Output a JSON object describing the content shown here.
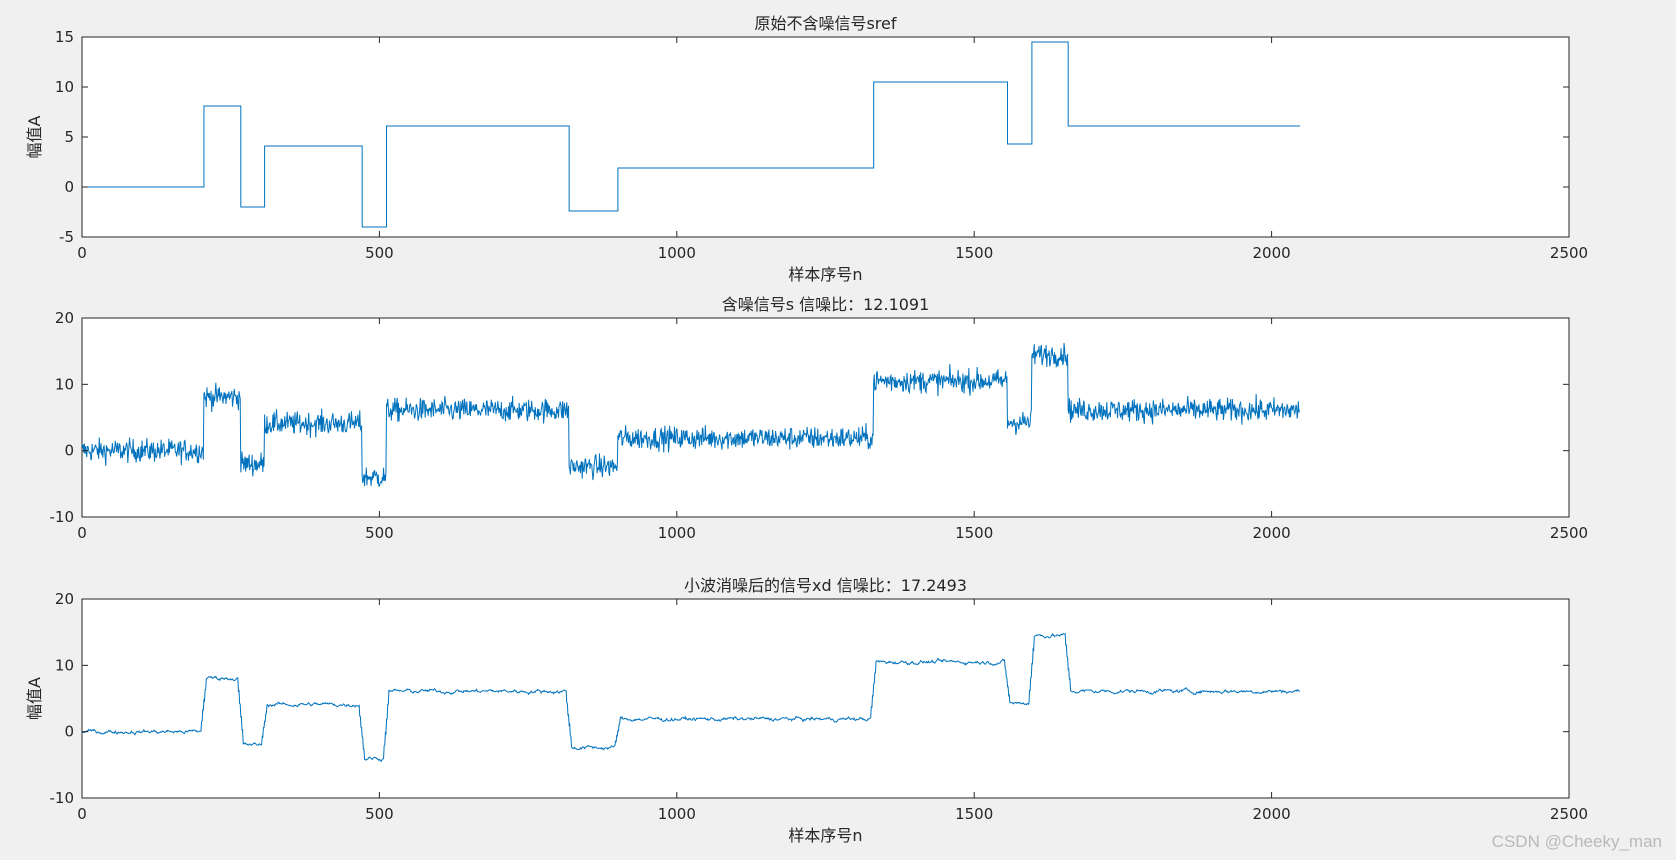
{
  "figure": {
    "background": "#f0f0f0",
    "axes_background": "#ffffff",
    "axis_color": "#262626",
    "line_color": "#0072bd",
    "watermark": "CSDN @Cheeky_man"
  },
  "chart_data": [
    {
      "type": "line",
      "title": "原始不含噪信号sref",
      "xlabel": "样本序号n",
      "ylabel": "幅值A",
      "xlim": [
        0,
        2500
      ],
      "ylim": [
        -5,
        15
      ],
      "xticks": [
        0,
        500,
        1000,
        1500,
        2000,
        2500
      ],
      "yticks": [
        -5,
        0,
        5,
        10,
        15
      ],
      "grid": false,
      "segments": [
        {
          "from": 0,
          "to": 205,
          "value": 0
        },
        {
          "from": 205,
          "to": 267,
          "value": 8.1
        },
        {
          "from": 267,
          "to": 307,
          "value": -2.0
        },
        {
          "from": 307,
          "to": 471,
          "value": 4.1
        },
        {
          "from": 471,
          "to": 512,
          "value": -4.0
        },
        {
          "from": 512,
          "to": 819,
          "value": 6.1
        },
        {
          "from": 819,
          "to": 901,
          "value": -2.4
        },
        {
          "from": 901,
          "to": 1331,
          "value": 1.9
        },
        {
          "from": 1331,
          "to": 1556,
          "value": 10.5
        },
        {
          "from": 1556,
          "to": 1597,
          "value": 4.3
        },
        {
          "from": 1597,
          "to": 1658,
          "value": 14.5
        },
        {
          "from": 1658,
          "to": 2048,
          "value": 6.1
        }
      ],
      "series": [
        {
          "style": "step"
        }
      ]
    },
    {
      "type": "line",
      "title": "含噪信号s 信噪比：12.1091",
      "xlabel": "",
      "ylabel": "",
      "xlim": [
        0,
        2500
      ],
      "ylim": [
        -10,
        20
      ],
      "xticks": [
        0,
        500,
        1000,
        1500,
        2000,
        2500
      ],
      "yticks": [
        -10,
        0,
        10,
        20
      ],
      "grid": false,
      "series": [
        {
          "style": "noisy",
          "noise_amplitude": 1.25
        }
      ]
    },
    {
      "type": "line",
      "title": "小波消噪后的信号xd 信噪比：17.2493",
      "xlabel": "样本序号n",
      "ylabel": "幅值A",
      "xlim": [
        0,
        2500
      ],
      "ylim": [
        -10,
        20
      ],
      "xticks": [
        0,
        500,
        1000,
        1500,
        2000,
        2500
      ],
      "yticks": [
        -10,
        0,
        10,
        20
      ],
      "grid": false,
      "series": [
        {
          "style": "denoised",
          "noise_amplitude": 0.45
        }
      ]
    }
  ]
}
